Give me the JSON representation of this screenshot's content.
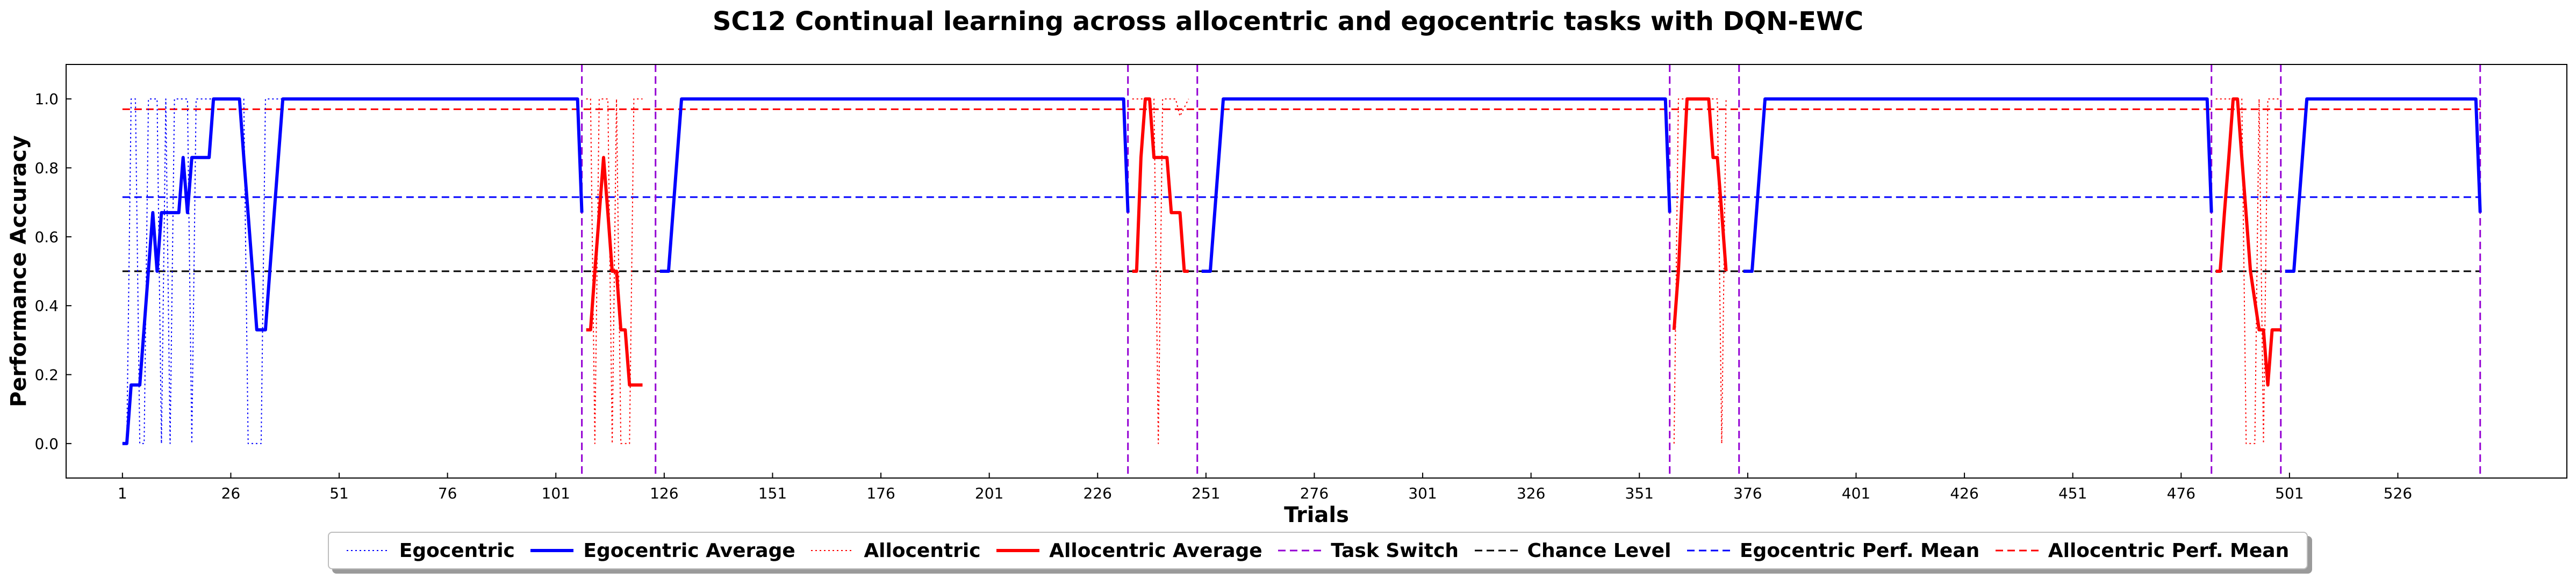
{
  "chart_data": {
    "type": "line",
    "title": "SC12 Continual learning across allocentric and egocentric tasks with DQN-EWC",
    "xlabel": "Trials",
    "ylabel": "Performance Accuracy",
    "xlim": [
      -12,
      565
    ],
    "ylim": [
      -0.1,
      1.1
    ],
    "xticks": [
      1,
      26,
      51,
      76,
      101,
      126,
      151,
      176,
      201,
      226,
      251,
      276,
      301,
      326,
      351,
      376,
      401,
      426,
      451,
      476,
      501,
      526
    ],
    "yticks": [
      "0.0",
      "0.2",
      "0.4",
      "0.6",
      "0.8",
      "1.0"
    ],
    "legend_position": "bottom-center",
    "colors": {
      "egocentric": "#0000ff",
      "allocentric": "#ff0000",
      "task_switch": "#9400d3",
      "chance": "#000000"
    },
    "task_switches": [
      107,
      124,
      233,
      249,
      358,
      374,
      483,
      499,
      545
    ],
    "chance_level": 0.5,
    "egocentric_perf_mean": 0.715,
    "allocentric_perf_mean": 0.97,
    "series": [
      {
        "name": "Egocentric Average",
        "style": "solid",
        "color": "#0000ff",
        "segments": [
          [
            [
              1,
              0
            ],
            [
              2,
              0
            ],
            [
              3,
              0.17
            ],
            [
              5,
              0.17
            ],
            [
              8,
              0.67
            ],
            [
              9,
              0.5
            ],
            [
              10,
              0.67
            ],
            [
              14,
              0.67
            ],
            [
              15,
              0.83
            ],
            [
              16,
              0.67
            ],
            [
              17,
              0.83
            ],
            [
              21,
              0.83
            ],
            [
              22,
              1
            ],
            [
              28,
              1
            ],
            [
              29,
              0.83
            ],
            [
              31,
              0.5
            ],
            [
              32,
              0.33
            ],
            [
              34,
              0.33
            ],
            [
              35,
              0.5
            ],
            [
              38,
              1
            ],
            [
              106,
              1
            ],
            [
              107,
              0.67
            ]
          ],
          [
            [
              125,
              0.5
            ],
            [
              127,
              0.5
            ],
            [
              130,
              1
            ],
            [
              232,
              1
            ],
            [
              233,
              0.67
            ]
          ],
          [
            [
              250,
              0.5
            ],
            [
              252,
              0.5
            ],
            [
              255,
              1
            ],
            [
              357,
              1
            ],
            [
              358,
              0.67
            ]
          ],
          [
            [
              375,
              0.5
            ],
            [
              377,
              0.5
            ],
            [
              380,
              1
            ],
            [
              482,
              1
            ],
            [
              483,
              0.67
            ]
          ],
          [
            [
              500,
              0.5
            ],
            [
              502,
              0.5
            ],
            [
              505,
              1
            ],
            [
              544,
              1
            ],
            [
              545,
              0.67
            ]
          ]
        ]
      },
      {
        "name": "Allocentric Average",
        "style": "solid",
        "color": "#ff0000",
        "segments": [
          [
            [
              108,
              0.33
            ],
            [
              109,
              0.33
            ],
            [
              110,
              0.5
            ],
            [
              112,
              0.83
            ],
            [
              113,
              0.67
            ],
            [
              114,
              0.5
            ],
            [
              115,
              0.5
            ],
            [
              116,
              0.33
            ],
            [
              117,
              0.33
            ],
            [
              118,
              0.17
            ],
            [
              121,
              0.17
            ]
          ],
          [
            [
              234,
              0.5
            ],
            [
              235,
              0.5
            ],
            [
              236,
              0.83
            ],
            [
              237,
              1
            ],
            [
              238,
              1
            ],
            [
              239,
              0.83
            ],
            [
              242,
              0.83
            ],
            [
              243,
              0.67
            ],
            [
              245,
              0.67
            ],
            [
              246,
              0.5
            ],
            [
              247,
              0.5
            ]
          ],
          [
            [
              359,
              0.33
            ],
            [
              360,
              0.5
            ],
            [
              362,
              1
            ],
            [
              365,
              1
            ],
            [
              367,
              1
            ],
            [
              368,
              0.83
            ],
            [
              369,
              0.83
            ],
            [
              370,
              0.67
            ],
            [
              371,
              0.5
            ]
          ],
          [
            [
              484,
              0.5
            ],
            [
              485,
              0.5
            ],
            [
              486,
              0.67
            ],
            [
              487,
              0.83
            ],
            [
              488,
              1
            ],
            [
              489,
              1
            ],
            [
              490,
              0.83
            ],
            [
              492,
              0.5
            ],
            [
              494,
              0.33
            ],
            [
              495,
              0.33
            ],
            [
              496,
              0.17
            ],
            [
              497,
              0.33
            ],
            [
              499,
              0.33
            ]
          ]
        ]
      },
      {
        "name": "Egocentric",
        "style": "dotted",
        "color": "#0000ff",
        "segments": [
          [
            [
              1,
              0
            ],
            [
              2,
              0
            ],
            [
              3,
              1
            ],
            [
              4,
              1
            ],
            [
              5,
              0
            ],
            [
              6,
              0
            ],
            [
              7,
              1
            ],
            [
              9,
              1
            ],
            [
              10,
              0
            ],
            [
              11,
              1
            ],
            [
              12,
              0
            ],
            [
              13,
              1
            ],
            [
              16,
              1
            ],
            [
              17,
              0
            ],
            [
              18,
              1
            ],
            [
              28,
              1
            ],
            [
              29,
              1
            ],
            [
              30,
              0
            ],
            [
              33,
              0
            ],
            [
              34,
              1
            ],
            [
              106,
              1
            ]
          ]
        ]
      },
      {
        "name": "Allocentric",
        "style": "dotted",
        "color": "#ff0000",
        "segments": [
          [
            [
              108,
              1
            ],
            [
              109,
              1
            ],
            [
              110,
              0
            ],
            [
              111,
              1
            ],
            [
              113,
              1
            ],
            [
              114,
              0
            ],
            [
              115,
              1
            ],
            [
              116,
              0
            ],
            [
              118,
              0
            ],
            [
              119,
              1
            ],
            [
              121,
              1
            ]
          ],
          [
            [
              234,
              1
            ],
            [
              239,
              1
            ],
            [
              240,
              0
            ],
            [
              241,
              1
            ],
            [
              244,
              1
            ],
            [
              245,
              0.95
            ],
            [
              247,
              1
            ]
          ],
          [
            [
              359,
              0
            ],
            [
              360,
              1
            ],
            [
              369,
              1
            ],
            [
              370,
              0
            ],
            [
              371,
              1
            ]
          ],
          [
            [
              484,
              1
            ],
            [
              490,
              1
            ],
            [
              491,
              0
            ],
            [
              493,
              0
            ],
            [
              494,
              1
            ],
            [
              495,
              0
            ],
            [
              496,
              1
            ],
            [
              499,
              1
            ]
          ]
        ]
      }
    ],
    "reference_lines": [
      {
        "name": "Chance Level",
        "y": 0.5,
        "x_range": [
          1,
          545
        ],
        "style": "dashed",
        "color": "#000000"
      },
      {
        "name": "Egocentric Perf. Mean",
        "y": 0.715,
        "x_range": [
          1,
          545
        ],
        "style": "dashed",
        "color": "#0000ff"
      },
      {
        "name": "Allocentric Perf. Mean",
        "y": 0.97,
        "x_range": [
          1,
          545
        ],
        "style": "dashed",
        "color": "#ff0000"
      }
    ],
    "legend": [
      {
        "label": "Egocentric",
        "color": "#0000ff",
        "style": "dotted",
        "weight": "thin"
      },
      {
        "label": "Egocentric Average",
        "color": "#0000ff",
        "style": "solid",
        "weight": "thick"
      },
      {
        "label": "Allocentric",
        "color": "#ff0000",
        "style": "dotted",
        "weight": "thin"
      },
      {
        "label": "Allocentric Average",
        "color": "#ff0000",
        "style": "solid",
        "weight": "thick"
      },
      {
        "label": "Task Switch",
        "color": "#9400d3",
        "style": "dashed",
        "weight": "normal"
      },
      {
        "label": "Chance Level",
        "color": "#000000",
        "style": "dashed",
        "weight": "normal"
      },
      {
        "label": "Egocentric Perf. Mean",
        "color": "#0000ff",
        "style": "dashed",
        "weight": "normal"
      },
      {
        "label": "Allocentric Perf. Mean",
        "color": "#ff0000",
        "style": "dashed",
        "weight": "normal"
      }
    ]
  }
}
